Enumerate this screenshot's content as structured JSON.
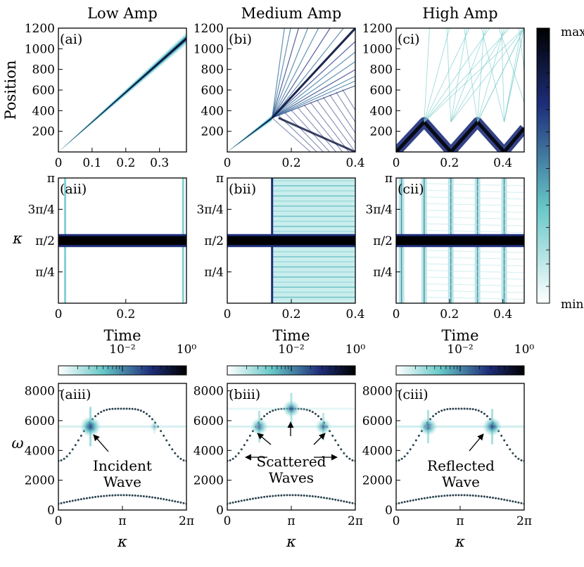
{
  "figure": {
    "column_titles": [
      "Low Amp",
      "Medium Amp",
      "High Amp"
    ],
    "position_label": "Position",
    "kappa_label": "κ",
    "omega_label": "ω",
    "time_label": "Time",
    "colorbar_main": {
      "max_label": "max",
      "min_label": "min"
    },
    "small_colorbar": {
      "low_label": "10⁻²",
      "high_label": "10⁰"
    }
  },
  "colors": {
    "cmap_low": "#ffffff",
    "cmap_mid1": "#66c7c7",
    "cmap_mid2": "#1e2e7a",
    "cmap_high": "#000000",
    "dots": "#2c4550"
  },
  "chart_data": [
    {
      "id": "ai",
      "type": "heatmap",
      "panel_label": "(ai)",
      "title": "Low Amp",
      "xlabel": "",
      "ylabel": "Position",
      "xlim": [
        0,
        0.38
      ],
      "ylim": [
        0,
        1200
      ],
      "xticks": [
        0,
        0.1,
        0.2,
        0.3
      ],
      "xtick_labels": [
        "0",
        "0.1",
        "0.2",
        "0.3"
      ],
      "yticks": [
        200,
        400,
        600,
        800,
        1000,
        1200
      ],
      "ytick_labels": [
        "200",
        "400",
        "600",
        "800",
        "1000",
        "1200"
      ],
      "features": [
        {
          "kind": "wave-packet",
          "from": [
            0,
            0
          ],
          "to": [
            0.38,
            1100
          ],
          "width": 110
        }
      ]
    },
    {
      "id": "bi",
      "type": "heatmap",
      "panel_label": "(bi)",
      "title": "Medium Amp",
      "xlabel": "",
      "ylabel": "",
      "xlim": [
        0,
        0.4
      ],
      "ylim": [
        0,
        1200
      ],
      "xticks": [
        0,
        0.2,
        0.4
      ],
      "xtick_labels": [
        "0",
        "0.2",
        "0.4"
      ],
      "yticks": [
        200,
        400,
        600,
        800,
        1000,
        1200
      ],
      "ytick_labels": [
        "200",
        "400",
        "600",
        "800",
        "1000",
        "1200"
      ],
      "features": [
        {
          "kind": "wave-packet",
          "from": [
            0,
            0
          ],
          "to": [
            0.14,
            330
          ],
          "width": 60
        },
        {
          "kind": "scattered-fan",
          "origin": [
            0.14,
            330
          ],
          "range": [
            0.14,
            0.4
          ],
          "top": 1200
        }
      ]
    },
    {
      "id": "ci",
      "type": "heatmap",
      "panel_label": "(ci)",
      "title": "High Amp",
      "xlabel": "",
      "ylabel": "",
      "xlim": [
        0,
        0.48
      ],
      "ylim": [
        0,
        1200
      ],
      "xticks": [
        0,
        0.2,
        0.4
      ],
      "xtick_labels": [
        "0",
        "0.2",
        "0.4"
      ],
      "yticks": [
        200,
        400,
        600,
        800,
        1000,
        1200
      ],
      "ytick_labels": [
        "200",
        "400",
        "600",
        "800",
        "1000",
        "1200"
      ],
      "features": [
        {
          "kind": "zigzag",
          "points": [
            [
              0,
              0
            ],
            [
              0.105,
              290
            ],
            [
              0.205,
              0
            ],
            [
              0.305,
              290
            ],
            [
              0.405,
              0
            ],
            [
              0.48,
              230
            ]
          ],
          "width": 40
        },
        {
          "kind": "faint-fan",
          "origin": [
            0.105,
            290
          ],
          "top": 1200
        }
      ]
    },
    {
      "id": "aii",
      "type": "heatmap",
      "panel_label": "(aii)",
      "xlabel": "Time",
      "ylabel": "κ",
      "xlim": [
        0,
        0.38
      ],
      "ylim": [
        0,
        3.1416
      ],
      "xticks": [
        0,
        0.2
      ],
      "xtick_labels": [
        "0",
        "0.2"
      ],
      "yticks": [
        0.7854,
        1.5708,
        2.3562,
        3.1416
      ],
      "ytick_labels": [
        "π/4",
        "π/2",
        "3π/4",
        "π"
      ],
      "features": [
        {
          "kind": "band",
          "kappa": 1.5708,
          "width": 0.22
        },
        {
          "kind": "edge-lines",
          "times": [
            0.02,
            0.37
          ]
        }
      ]
    },
    {
      "id": "bii",
      "type": "heatmap",
      "panel_label": "(bii)",
      "xlabel": "Time",
      "ylabel": "",
      "xlim": [
        0,
        0.4
      ],
      "ylim": [
        0,
        3.1416
      ],
      "xticks": [
        0,
        0.2,
        0.4
      ],
      "xtick_labels": [
        "0",
        "0.2",
        "0.4"
      ],
      "yticks": [
        0.7854,
        1.5708,
        2.3562,
        3.1416
      ],
      "ytick_labels": [
        "π/4",
        "π/2",
        "3π/4",
        "π"
      ],
      "features": [
        {
          "kind": "band",
          "kappa": 1.5708,
          "width": 0.22
        },
        {
          "kind": "broadband",
          "from_time": 0.14
        }
      ]
    },
    {
      "id": "cii",
      "type": "heatmap",
      "panel_label": "(cii)",
      "xlabel": "Time",
      "ylabel": "",
      "xlim": [
        0,
        0.48
      ],
      "ylim": [
        0,
        3.1416
      ],
      "xticks": [
        0,
        0.2,
        0.4
      ],
      "xtick_labels": [
        "0",
        "0.2",
        "0.4"
      ],
      "yticks": [
        0.7854,
        1.5708,
        2.3562,
        3.1416
      ],
      "ytick_labels": [
        "π/4",
        "π/2",
        "3π/4",
        "π"
      ],
      "features": [
        {
          "kind": "band",
          "kappa": 1.5708,
          "width": 0.22
        },
        {
          "kind": "reflection-spikes",
          "times": [
            0.02,
            0.105,
            0.205,
            0.305,
            0.405
          ]
        }
      ]
    },
    {
      "id": "aiii",
      "type": "scatter",
      "panel_label": "(aiii)",
      "xlabel": "κ",
      "ylabel": "ω",
      "xlim": [
        0,
        6.2832
      ],
      "ylim": [
        0,
        8500
      ],
      "xticks": [
        0,
        3.1416,
        6.2832
      ],
      "xtick_labels": [
        "0",
        "π",
        "2π"
      ],
      "yticks": [
        0,
        2000,
        4000,
        6000,
        8000
      ],
      "ytick_labels": [
        "0",
        "2000",
        "4000",
        "6000",
        "8000"
      ],
      "dispersion": {
        "optical_min": 3300,
        "optical_max": 6800,
        "acoustic_max": 1000
      },
      "hotspots": [
        {
          "kappa": 1.5708,
          "omega": 5600,
          "strength": 1.0
        },
        {
          "kappa": 4.7124,
          "omega": 5600,
          "strength": 0.35
        }
      ],
      "annotation": {
        "text": [
          "Incident",
          "Wave"
        ]
      }
    },
    {
      "id": "biii",
      "type": "scatter",
      "panel_label": "(biii)",
      "xlabel": "κ",
      "ylabel": "",
      "xlim": [
        0,
        6.2832
      ],
      "ylim": [
        0,
        8500
      ],
      "xticks": [
        0,
        3.1416,
        6.2832
      ],
      "xtick_labels": [
        "0",
        "π",
        "2π"
      ],
      "yticks": [
        0,
        2000,
        4000,
        6000,
        8000
      ],
      "ytick_labels": [
        "0",
        "2000",
        "4000",
        "6000",
        "8000"
      ],
      "dispersion": {
        "optical_min": 3300,
        "optical_max": 6800,
        "acoustic_max": 1000
      },
      "hotspots": [
        {
          "kappa": 1.5708,
          "omega": 5600,
          "strength": 0.8
        },
        {
          "kappa": 3.1416,
          "omega": 6800,
          "strength": 0.8
        },
        {
          "kappa": 4.7124,
          "omega": 5600,
          "strength": 0.7
        }
      ],
      "annotation": {
        "text": [
          "Scattered",
          "Waves"
        ]
      }
    },
    {
      "id": "ciii",
      "type": "scatter",
      "panel_label": "(ciii)",
      "xlabel": "κ",
      "ylabel": "",
      "xlim": [
        0,
        6.2832
      ],
      "ylim": [
        0,
        8500
      ],
      "xticks": [
        0,
        3.1416,
        6.2832
      ],
      "xtick_labels": [
        "0",
        "π",
        "2π"
      ],
      "yticks": [
        0,
        2000,
        4000,
        6000,
        8000
      ],
      "ytick_labels": [
        "0",
        "2000",
        "4000",
        "6000",
        "8000"
      ],
      "dispersion": {
        "optical_min": 3300,
        "optical_max": 6800,
        "acoustic_max": 1000
      },
      "hotspots": [
        {
          "kappa": 1.5708,
          "omega": 5600,
          "strength": 0.85
        },
        {
          "kappa": 4.7124,
          "omega": 5600,
          "strength": 0.9
        }
      ],
      "annotation": {
        "text": [
          "Reflected",
          "Wave"
        ]
      }
    }
  ]
}
